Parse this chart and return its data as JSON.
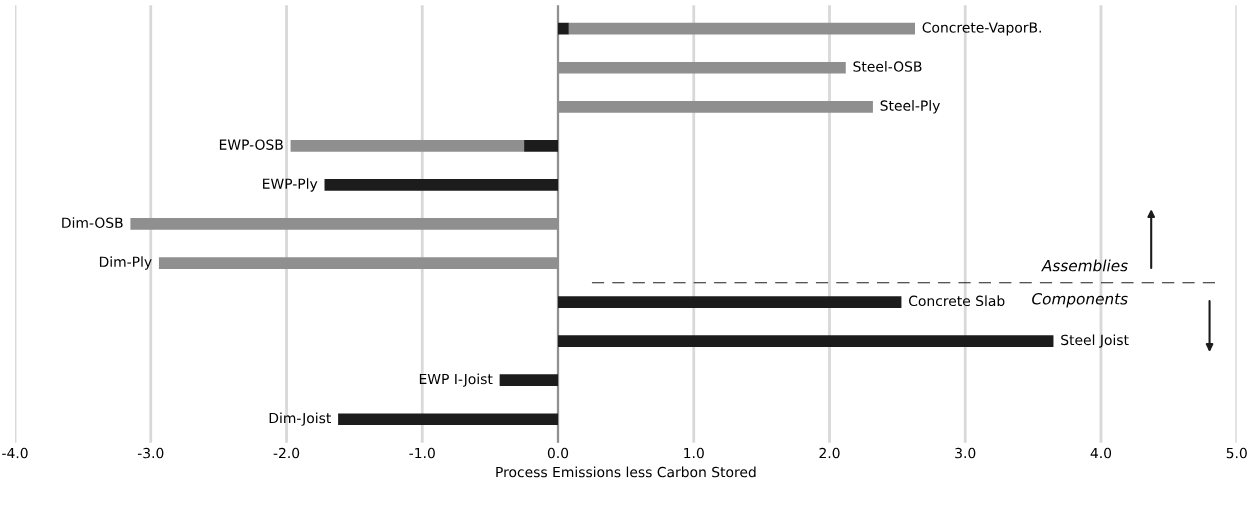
{
  "chart_data": {
    "type": "bar",
    "orientation": "horizontal",
    "stacked": true,
    "xlabel": "Process Emissions less Carbon Stored",
    "categories": [
      "Concrete-VaporB.",
      "Steel-OSB",
      "Steel-Ply",
      "EWP-OSB",
      "EWP-Ply",
      "Dim-OSB",
      "Dim-Ply",
      "Concrete Slab",
      "Steel Joist",
      "EWP I-Joist",
      "Dim-Joist"
    ],
    "series": [
      {
        "color": "#1c1c1c",
        "values": [
          0.08,
          null,
          null,
          -0.25,
          -1.72,
          null,
          null,
          2.53,
          3.65,
          -0.43,
          -1.62
        ]
      },
      {
        "color": "#8f8f8f",
        "values": [
          2.55,
          2.12,
          2.32,
          -1.72,
          null,
          -3.15,
          -2.94,
          null,
          null,
          null,
          null
        ]
      }
    ],
    "xlim": [
      -4.0,
      5.0
    ],
    "xticks": [
      {
        "value": -4,
        "label": "-4.0"
      },
      {
        "value": -3,
        "label": "-3.0"
      },
      {
        "value": -2,
        "label": "-2.0"
      },
      {
        "value": -1,
        "label": "-1.0"
      },
      {
        "value": 0,
        "label": "0.0"
      },
      {
        "value": 1,
        "label": "1.0"
      },
      {
        "value": 2,
        "label": "2.0"
      },
      {
        "value": 3,
        "label": "3.0"
      },
      {
        "value": 4,
        "label": "4.0"
      },
      {
        "value": 5,
        "label": "5.0"
      }
    ],
    "grid": "x",
    "tick_labels": "x",
    "annotations": [
      "Assemblies",
      "Components"
    ]
  }
}
